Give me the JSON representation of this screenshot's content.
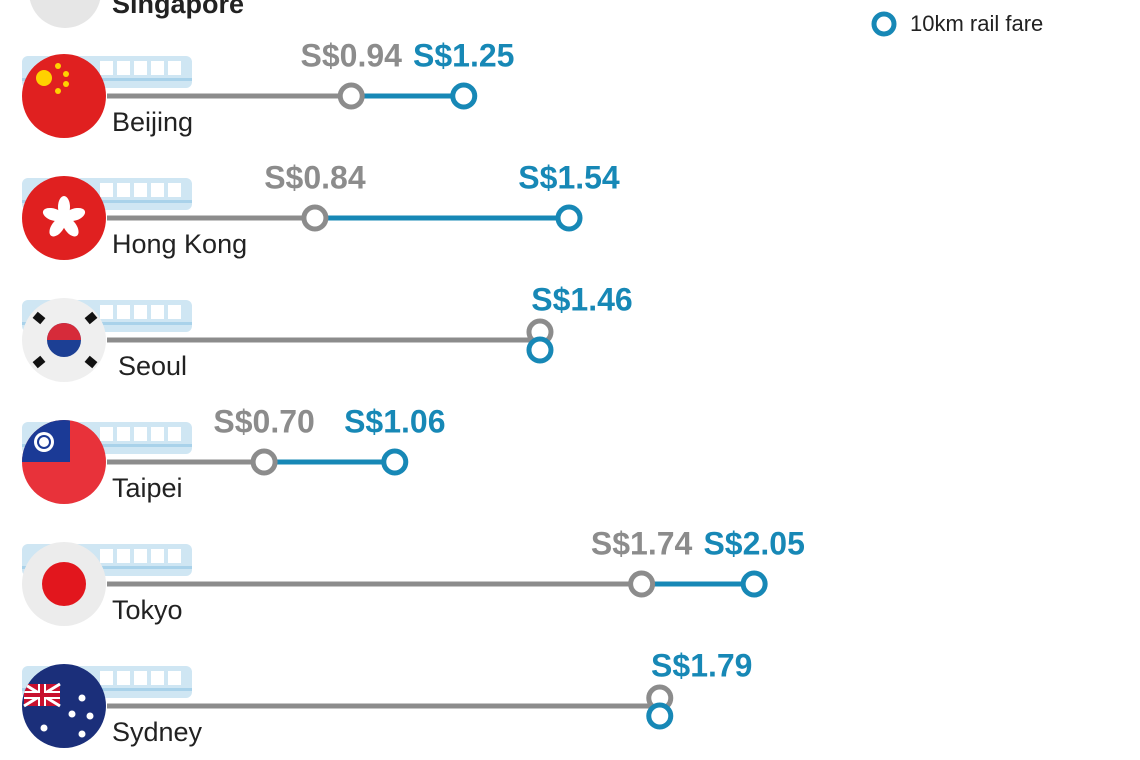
{
  "chart_data": {
    "type": "dumbbell",
    "top_label": "Singapore",
    "categories": [
      "Beijing",
      "Hong Kong",
      "Seoul",
      "Taipei",
      "Tokyo",
      "Sydney"
    ],
    "series": [
      {
        "color": "#8c8c8c",
        "values": [
          0.94,
          0.84,
          1.46,
          0.7,
          1.74,
          1.79
        ],
        "value_labels": [
          "S$0.94",
          "S$0.84",
          null,
          "S$0.70",
          "S$1.74",
          null
        ]
      },
      {
        "name": "10km rail fare",
        "color": "#1788b6",
        "values": [
          1.25,
          1.54,
          1.46,
          1.06,
          2.05,
          1.79
        ],
        "value_labels": [
          "S$1.25",
          "S$1.54",
          "S$1.46",
          "S$1.06",
          "S$2.05",
          "S$1.79"
        ]
      }
    ]
  }
}
